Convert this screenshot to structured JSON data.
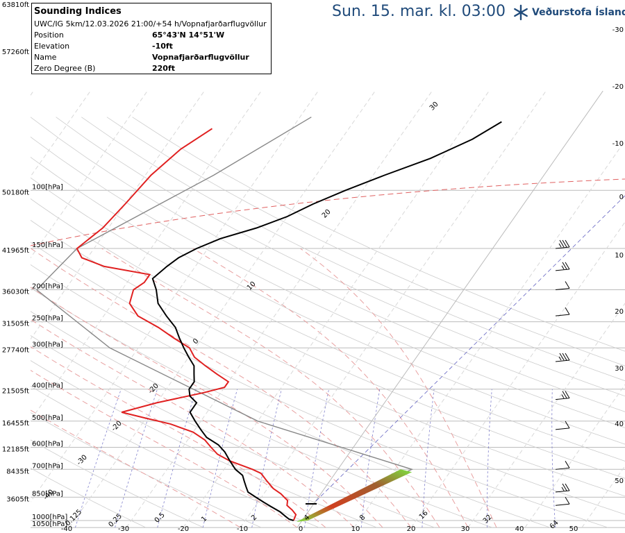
{
  "header": {
    "valid_time": "Sun. 15. mar. kl. 03:00",
    "brand": "Veðurstofa Íslands",
    "brand_color": "#1f4a7a"
  },
  "info": {
    "title": "Sounding Indices",
    "model_line": "UWC/IG 5km/12.03.2026 21:00/+54 h/Vopnafjarðarflugvöllur",
    "rows": [
      {
        "label": "Position",
        "value": "65°43'N 14°51'W"
      },
      {
        "label": "Elevation",
        "value": "-10ft"
      },
      {
        "label": "Name",
        "value": "Vopnafjarðarflugvöllur"
      },
      {
        "label": "Zero Degree (B)",
        "value": "220ft"
      }
    ]
  },
  "chart_data": {
    "type": "line",
    "pressure_levels": [
      {
        "p": 100,
        "label": "100[hPa]",
        "alt": "50180ft"
      },
      {
        "p": 150,
        "label": "150[hPa]",
        "alt": "41965ft"
      },
      {
        "p": 200,
        "label": "200[hPa]",
        "alt": "36030ft"
      },
      {
        "p": 250,
        "label": "250[hPa]",
        "alt": "31505ft"
      },
      {
        "p": 300,
        "label": "300[hPa]",
        "alt": "27740ft"
      },
      {
        "p": 400,
        "label": "400[hPa]",
        "alt": "21505ft"
      },
      {
        "p": 500,
        "label": "500[hPa]",
        "alt": "16455ft"
      },
      {
        "p": 600,
        "label": "600[hPa]",
        "alt": "12185ft"
      },
      {
        "p": 700,
        "label": "700[hPa]",
        "alt": "8435ft"
      },
      {
        "p": 850,
        "label": "850[hPa]",
        "alt": "3605ft"
      },
      {
        "p": 1000,
        "label": "1000[hPa]",
        "alt": ""
      },
      {
        "p": 1050,
        "label": "1050[hPa]",
        "alt": ""
      }
    ],
    "top_altitude": "63810ft",
    "second_altitude": "57260ft",
    "temperature_profile": [
      [
        1000,
        -1.5
      ],
      [
        960,
        -1.8
      ],
      [
        930,
        -3
      ],
      [
        900,
        -4.5
      ],
      [
        870,
        -5
      ],
      [
        850,
        -6
      ],
      [
        830,
        -7
      ],
      [
        800,
        -9
      ],
      [
        760,
        -11
      ],
      [
        720,
        -13
      ],
      [
        700,
        -15
      ],
      [
        660,
        -20
      ],
      [
        630,
        -23
      ],
      [
        600,
        -25
      ],
      [
        570,
        -27
      ],
      [
        540,
        -30
      ],
      [
        510,
        -35
      ],
      [
        490,
        -40
      ],
      [
        470,
        -45
      ],
      [
        440,
        -40
      ],
      [
        410,
        -33
      ],
      [
        395,
        -30
      ],
      [
        380,
        -30
      ],
      [
        360,
        -33
      ],
      [
        340,
        -36
      ],
      [
        320,
        -39
      ],
      [
        300,
        -41
      ],
      [
        280,
        -45
      ],
      [
        260,
        -49
      ],
      [
        240,
        -54
      ],
      [
        220,
        -57
      ],
      [
        200,
        -58
      ],
      [
        190,
        -57
      ],
      [
        180,
        -57
      ],
      [
        170,
        -66
      ],
      [
        160,
        -71
      ],
      [
        150,
        -73
      ],
      [
        130,
        -71
      ],
      [
        110,
        -70
      ],
      [
        90,
        -69
      ],
      [
        75,
        -67
      ],
      [
        65,
        -64
      ]
    ],
    "dewpoint_profile": [
      [
        1000,
        -1.5
      ],
      [
        990,
        -2.5
      ],
      [
        970,
        -3.5
      ],
      [
        940,
        -5
      ],
      [
        910,
        -7
      ],
      [
        880,
        -9
      ],
      [
        850,
        -11
      ],
      [
        820,
        -13
      ],
      [
        790,
        -14
      ],
      [
        760,
        -15
      ],
      [
        730,
        -16
      ],
      [
        700,
        -18
      ],
      [
        660,
        -20
      ],
      [
        620,
        -22
      ],
      [
        590,
        -24
      ],
      [
        560,
        -27
      ],
      [
        530,
        -29
      ],
      [
        500,
        -31
      ],
      [
        470,
        -33
      ],
      [
        440,
        -33
      ],
      [
        420,
        -35
      ],
      [
        400,
        -36
      ],
      [
        380,
        -36
      ],
      [
        360,
        -37
      ],
      [
        340,
        -38
      ],
      [
        320,
        -40
      ],
      [
        300,
        -42
      ],
      [
        280,
        -44
      ],
      [
        260,
        -46
      ],
      [
        240,
        -49
      ],
      [
        220,
        -52
      ],
      [
        200,
        -54
      ],
      [
        185,
        -56
      ],
      [
        170,
        -55
      ],
      [
        160,
        -54
      ],
      [
        150,
        -52
      ],
      [
        140,
        -49
      ],
      [
        130,
        -44
      ],
      [
        120,
        -40
      ],
      [
        110,
        -37
      ],
      [
        100,
        -33
      ],
      [
        90,
        -28
      ],
      [
        80,
        -22
      ],
      [
        70,
        -17
      ],
      [
        62,
        -14
      ]
    ],
    "isotherms": [
      -40,
      -30,
      -20,
      -10,
      0,
      10,
      20,
      30
    ],
    "isotherm_labels": [
      {
        "t": -30,
        "label": "-30"
      },
      {
        "t": -20,
        "label": "-20"
      },
      {
        "t": -10,
        "label": "-10"
      },
      {
        "t": 0,
        "label": "0"
      },
      {
        "t": 10,
        "label": "10"
      }
    ],
    "zero_isotherm_color": "#e06060",
    "right_axis_labels": [
      "-30",
      "-20",
      "-10",
      "0",
      "10",
      "20",
      "30",
      "40",
      "50"
    ],
    "bottom_tick_labels": [
      "-40",
      "-30",
      "-20",
      "-10",
      "0",
      "10",
      "20",
      "30",
      "40",
      "50"
    ],
    "mixing_ratio_labels": [
      "0.125",
      "0.25",
      "0.5",
      "1",
      "2",
      "4",
      "8",
      "16",
      "32",
      "64"
    ],
    "in_plot_labels": [
      "30",
      "20",
      "10",
      "0",
      "-20",
      "-20",
      "-30",
      "-40"
    ],
    "barbs": [
      {
        "p": 150,
        "speed": 25
      },
      {
        "p": 175,
        "speed": 15
      },
      {
        "p": 200,
        "speed": 10
      },
      {
        "p": 240,
        "speed": 10
      },
      {
        "p": 330,
        "speed": 25
      },
      {
        "p": 430,
        "speed": 15
      },
      {
        "p": 530,
        "speed": 10
      },
      {
        "p": 700,
        "speed": 10
      },
      {
        "p": 820,
        "speed": 15
      },
      {
        "p": 900,
        "speed": 10
      }
    ],
    "colors": {
      "temperature": "#e02020",
      "dewpoint": "#000000",
      "parcel": "#888888",
      "isotherm": "#e06060",
      "dry_adiabat": "#cccccc",
      "moist_adiabat": "#e8a0a0",
      "isobar": "#bbbbbb",
      "mixing_ratio": "#8080cc"
    }
  }
}
